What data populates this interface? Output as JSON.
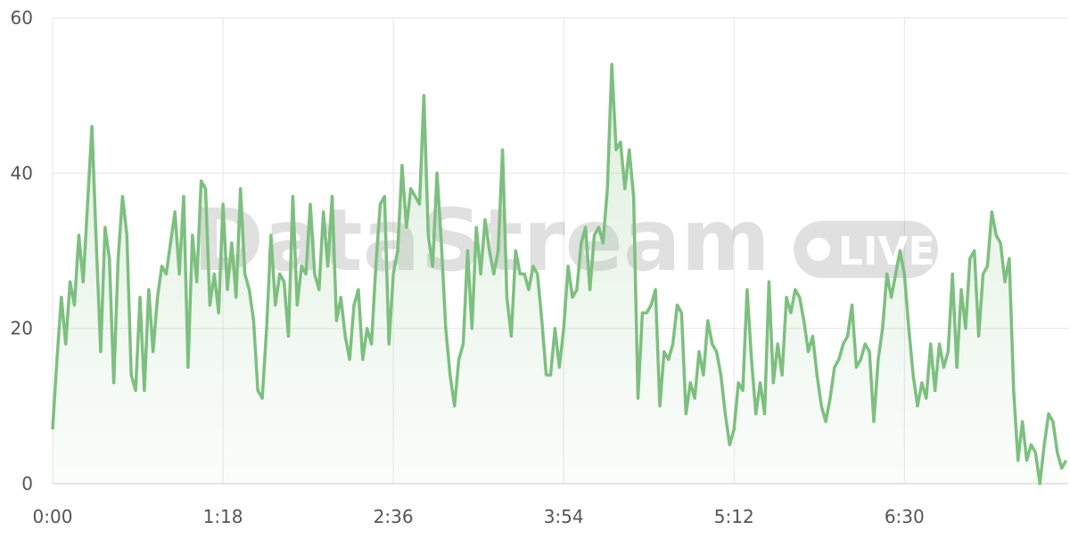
{
  "chart_data": {
    "type": "line",
    "watermark": "DataStream",
    "badge": "LIVE",
    "x": [
      0,
      2,
      4,
      6,
      8,
      10,
      12,
      14,
      16,
      18,
      20,
      22,
      24,
      26,
      28,
      30,
      32,
      34,
      36,
      38,
      40,
      42,
      44,
      46,
      48,
      50,
      52,
      54,
      56,
      58,
      60,
      62,
      64,
      66,
      68,
      70,
      72,
      74,
      76,
      78,
      80,
      82,
      84,
      86,
      88,
      90,
      92,
      94,
      96,
      98,
      100,
      102,
      104,
      106,
      108,
      110,
      112,
      114,
      116,
      118,
      120,
      122,
      124,
      126,
      128,
      130,
      132,
      134,
      136,
      138,
      140,
      142,
      144,
      146,
      148,
      150,
      152,
      154,
      156,
      158,
      160,
      162,
      164,
      166,
      168,
      170,
      172,
      174,
      176,
      178,
      180,
      182,
      184,
      186,
      188,
      190,
      192,
      194,
      196,
      198,
      200,
      202,
      204,
      206,
      208,
      210,
      212,
      214,
      216,
      218,
      220,
      222,
      224,
      226,
      228,
      230,
      232,
      234,
      236,
      238,
      240,
      242,
      244,
      246,
      248,
      250,
      252,
      254,
      256,
      258,
      260,
      262,
      264,
      266,
      268,
      270,
      272,
      274,
      276,
      278,
      280,
      282,
      284,
      286,
      288,
      290,
      292,
      294,
      296,
      298,
      300,
      302,
      304,
      306,
      308,
      310,
      312,
      314,
      316,
      318,
      320,
      322,
      324,
      326,
      328,
      330,
      332,
      334,
      336,
      338,
      340,
      342,
      344,
      346,
      348,
      350,
      352,
      354,
      356,
      358,
      360,
      362,
      364,
      366,
      368,
      370,
      372,
      374,
      376,
      378,
      380,
      382,
      384,
      386,
      388,
      390,
      392,
      394,
      396,
      398,
      400,
      402,
      404,
      406,
      408,
      410,
      412,
      414,
      416,
      418,
      420,
      422,
      424,
      426,
      428,
      430,
      432,
      434,
      436,
      438,
      440,
      442,
      444,
      446,
      448,
      450,
      452,
      454,
      456,
      458,
      460,
      462,
      464
    ],
    "series": [
      {
        "color": "#7dbf7f",
        "values": [
          7,
          16,
          24,
          18,
          26,
          23,
          32,
          26,
          36,
          46,
          31,
          17,
          33,
          29,
          13,
          29,
          37,
          32,
          14,
          12,
          24,
          12,
          25,
          17,
          24,
          28,
          27,
          31,
          35,
          27,
          37,
          15,
          32,
          26,
          39,
          38,
          23,
          27,
          22,
          36,
          25,
          31,
          24,
          38,
          27,
          25,
          21,
          12,
          11,
          20,
          32,
          23,
          27,
          26,
          19,
          37,
          23,
          28,
          27,
          36,
          27,
          25,
          35,
          28,
          37,
          21,
          24,
          19,
          16,
          23,
          25,
          16,
          20,
          18,
          28,
          36,
          37,
          18,
          27,
          30,
          41,
          33,
          38,
          37,
          36,
          50,
          32,
          28,
          40,
          31,
          20,
          14,
          10,
          16,
          18,
          30,
          20,
          33,
          27,
          34,
          30,
          27,
          30,
          43,
          24,
          19,
          30,
          27,
          27,
          25,
          28,
          27,
          21,
          14,
          14,
          20,
          15,
          20,
          28,
          24,
          25,
          31,
          33,
          25,
          32,
          33,
          31,
          38,
          54,
          43,
          44,
          38,
          43,
          37,
          11,
          22,
          22,
          23,
          25,
          10,
          17,
          16,
          18,
          23,
          22,
          9,
          13,
          11,
          17,
          14,
          21,
          18,
          17,
          14,
          9,
          5,
          7,
          13,
          12,
          25,
          16,
          9,
          13,
          9,
          26,
          13,
          18,
          14,
          24,
          22,
          25,
          24,
          21,
          17,
          19,
          14,
          10,
          8,
          11,
          15,
          16,
          18,
          19,
          23,
          15,
          16,
          18,
          17,
          8,
          16,
          20,
          27,
          24,
          27,
          30,
          27,
          20,
          14,
          10,
          13,
          11,
          18,
          12,
          18,
          15,
          17,
          27,
          15,
          25,
          20,
          29,
          30,
          19,
          27,
          28,
          35,
          32,
          31,
          26,
          29,
          12,
          3,
          8,
          3,
          5,
          4,
          0,
          5,
          9,
          8,
          4,
          2,
          3
        ]
      }
    ],
    "xlim": [
      0,
      465
    ],
    "xticks": [
      {
        "value": 0,
        "label": "0:00"
      },
      {
        "value": 78,
        "label": "1:18"
      },
      {
        "value": 156,
        "label": "2:36"
      },
      {
        "value": 234,
        "label": "3:54"
      },
      {
        "value": 312,
        "label": "5:12"
      },
      {
        "value": 390,
        "label": "6:30"
      }
    ],
    "ylim": [
      0,
      60
    ],
    "yticks": [
      0,
      20,
      40,
      60
    ],
    "grid": true
  }
}
